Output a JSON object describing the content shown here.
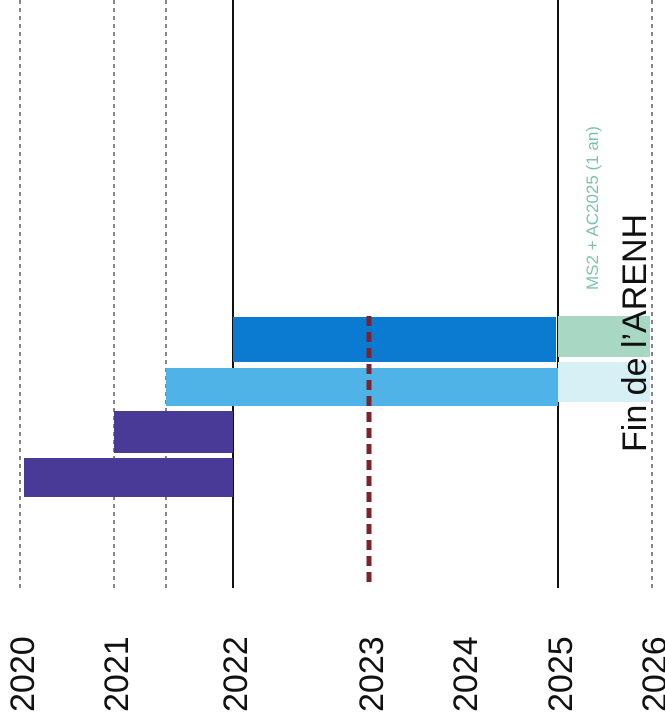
{
  "chart_data": {
    "type": "bar",
    "orientation": "rotated-timeline",
    "x_axis": {
      "ticks": [
        "2020",
        "2021",
        "2022",
        "2023",
        "2024",
        "2025",
        "2026"
      ]
    },
    "bars": [
      {
        "start": 2020.0,
        "end": 2022.0,
        "color": "#4a3a98"
      },
      {
        "start": 2021.0,
        "end": 2022.0,
        "color": "#4a3a98"
      },
      {
        "start": 2021.5,
        "end": 2025.0,
        "color": "#4fb3e8"
      },
      {
        "start": 2022.0,
        "end": 2025.0,
        "color": "#0a7bd0"
      },
      {
        "start": 2025.0,
        "end": 2026.0,
        "color": "#d6f0f5"
      },
      {
        "start": 2025.0,
        "end": 2026.0,
        "color": "#a8d8c3"
      }
    ],
    "markers": [
      {
        "x": 2023.0,
        "style": "dashed",
        "color": "#7a2430"
      }
    ],
    "vlines": [
      {
        "x": 2020.0,
        "style": "dashed"
      },
      {
        "x": 2021.0,
        "style": "dashed"
      },
      {
        "x": 2021.5,
        "style": "dashed"
      },
      {
        "x": 2022.0,
        "style": "solid"
      },
      {
        "x": 2025.0,
        "style": "solid"
      },
      {
        "x": 2026.0,
        "style": "dashed"
      }
    ],
    "annotations": [
      {
        "text": "MS2 + AC2025 (1 an)",
        "color": "#7cc3ad"
      },
      {
        "text": "Fin de l’ARENH",
        "color": "#111111"
      }
    ]
  }
}
